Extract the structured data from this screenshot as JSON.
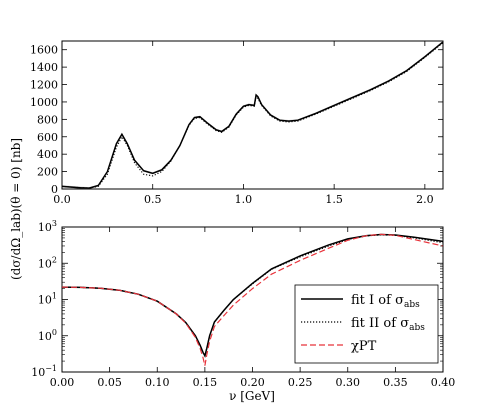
{
  "chart_data": [
    {
      "type": "line",
      "title": "",
      "xlabel": "",
      "ylabel": "",
      "xlim": [
        0.0,
        2.1
      ],
      "ylim": [
        0,
        1700
      ],
      "x_ticks": [
        "0.0",
        "0.5",
        "1.0",
        "1.5",
        "2.0"
      ],
      "y_ticks": [
        "0",
        "200",
        "400",
        "600",
        "800",
        "1000",
        "1200",
        "1400",
        "1600"
      ],
      "series": [
        {
          "style": "solid",
          "color": "#000000",
          "band_color": "#999999",
          "x": [
            0.0,
            0.1,
            0.15,
            0.2,
            0.25,
            0.3,
            0.33,
            0.36,
            0.4,
            0.45,
            0.5,
            0.55,
            0.6,
            0.65,
            0.7,
            0.73,
            0.76,
            0.8,
            0.85,
            0.88,
            0.92,
            0.96,
            1.0,
            1.03,
            1.06,
            1.07,
            1.08,
            1.1,
            1.15,
            1.2,
            1.25,
            1.3,
            1.4,
            1.5,
            1.6,
            1.7,
            1.8,
            1.9,
            2.0,
            2.1
          ],
          "y": [
            30,
            15,
            10,
            40,
            200,
            520,
            630,
            520,
            330,
            210,
            180,
            220,
            330,
            500,
            740,
            820,
            830,
            760,
            680,
            660,
            720,
            860,
            950,
            970,
            960,
            1080,
            1060,
            970,
            850,
            790,
            780,
            790,
            870,
            960,
            1050,
            1140,
            1240,
            1360,
            1520,
            1690
          ]
        },
        {
          "style": "dotted",
          "color": "#000000",
          "x": [
            0.0,
            0.1,
            0.15,
            0.2,
            0.25,
            0.3,
            0.33,
            0.36,
            0.4,
            0.45,
            0.5,
            0.55,
            0.6,
            0.65,
            0.7,
            0.73,
            0.76,
            0.8,
            0.85,
            0.88,
            0.92,
            0.96,
            1.0,
            1.03,
            1.06,
            1.07,
            1.08,
            1.1,
            1.15,
            1.2,
            1.25,
            1.3,
            1.4,
            1.5,
            1.6,
            1.7,
            1.8,
            1.9,
            2.0,
            2.1
          ],
          "y": [
            30,
            15,
            10,
            30,
            170,
            480,
            600,
            500,
            300,
            170,
            150,
            200,
            320,
            500,
            730,
            810,
            820,
            750,
            670,
            650,
            710,
            850,
            940,
            960,
            950,
            1060,
            1040,
            960,
            840,
            780,
            770,
            780,
            860,
            950,
            1040,
            1130,
            1230,
            1350,
            1510,
            1680
          ]
        }
      ]
    },
    {
      "type": "line",
      "title": "",
      "xlabel": "ν [GeV]",
      "ylabel": "(dσ/dΩ_lab)(θ = 0)  [nb]",
      "xlim": [
        0.0,
        0.4
      ],
      "ylim": [
        0.1,
        1000
      ],
      "yscale": "log",
      "x_ticks": [
        "0.00",
        "0.05",
        "0.10",
        "0.15",
        "0.20",
        "0.25",
        "0.30",
        "0.35",
        "0.40"
      ],
      "y_ticks": [
        {
          "base": "10",
          "exp": "−1"
        },
        {
          "base": "10",
          "exp": "0"
        },
        {
          "base": "10",
          "exp": "1"
        },
        {
          "base": "10",
          "exp": "2"
        },
        {
          "base": "10",
          "exp": "3"
        }
      ],
      "legend_position": "lower-right",
      "series": [
        {
          "name": {
            "main": "fit I of σ",
            "sub": "abs"
          },
          "style": "solid",
          "color": "#000000",
          "x": [
            0.0,
            0.02,
            0.04,
            0.06,
            0.08,
            0.1,
            0.12,
            0.13,
            0.14,
            0.145,
            0.148,
            0.15,
            0.152,
            0.155,
            0.16,
            0.17,
            0.18,
            0.2,
            0.22,
            0.25,
            0.28,
            0.3,
            0.32,
            0.335,
            0.35,
            0.37,
            0.4
          ],
          "y": [
            22,
            21.5,
            20.5,
            18,
            14,
            9,
            4,
            2.3,
            1.0,
            0.55,
            0.35,
            0.28,
            0.45,
            1.0,
            2.4,
            5,
            10,
            28,
            70,
            160,
            320,
            470,
            580,
            620,
            600,
            520,
            400
          ]
        },
        {
          "name": {
            "main": "fit II of σ",
            "sub": "abs"
          },
          "style": "dotted",
          "color": "#000000",
          "x": [
            0.0,
            0.02,
            0.04,
            0.06,
            0.08,
            0.1,
            0.12,
            0.13,
            0.14,
            0.145,
            0.148,
            0.15,
            0.152,
            0.155,
            0.16,
            0.17,
            0.18,
            0.2,
            0.22,
            0.25,
            0.28,
            0.3,
            0.32,
            0.335,
            0.35,
            0.37,
            0.4
          ],
          "y": [
            22,
            21.5,
            20.5,
            18,
            14,
            9,
            4,
            2.3,
            1.0,
            0.55,
            0.35,
            0.28,
            0.45,
            1.0,
            2.4,
            5,
            10,
            27,
            68,
            150,
            300,
            450,
            570,
            610,
            590,
            500,
            370
          ]
        },
        {
          "name": {
            "main": "χPT",
            "sub": ""
          },
          "style": "dashed",
          "color": "#e8333b",
          "x": [
            0.0,
            0.02,
            0.04,
            0.06,
            0.08,
            0.1,
            0.12,
            0.13,
            0.14,
            0.145,
            0.148,
            0.15,
            0.152,
            0.155,
            0.16,
            0.17,
            0.18,
            0.2,
            0.22,
            0.25,
            0.28,
            0.3,
            0.32,
            0.335,
            0.35,
            0.37,
            0.4
          ],
          "y": [
            22,
            21.5,
            20.5,
            18,
            14,
            9,
            4,
            2.2,
            0.9,
            0.45,
            0.25,
            0.15,
            0.3,
            0.7,
            1.8,
            3.6,
            7,
            20,
            50,
            120,
            260,
            430,
            580,
            630,
            590,
            450,
            300
          ]
        }
      ]
    }
  ]
}
